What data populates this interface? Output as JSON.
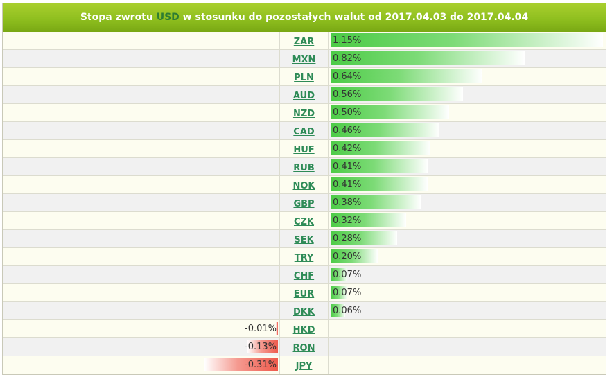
{
  "header": {
    "prefix": "Stopa zwrotu",
    "base_currency": "USD",
    "suffix": "w stosunku do pozostałych walut od 2017.04.03 do 2017.04.04"
  },
  "colors": {
    "header_green": "#8fbf1f",
    "positive_bar": "#4ccb46",
    "negative_bar": "#ee5a4c",
    "link": "#2e8b57"
  },
  "chart_data": {
    "type": "bar",
    "orientation": "horizontal",
    "base_currency": "USD",
    "period": [
      "2017.04.03",
      "2017.04.04"
    ],
    "unit": "%",
    "categories": [
      "ZAR",
      "MXN",
      "PLN",
      "AUD",
      "NZD",
      "CAD",
      "HUF",
      "RUB",
      "NOK",
      "GBP",
      "CZK",
      "SEK",
      "TRY",
      "CHF",
      "EUR",
      "DKK",
      "HKD",
      "RON",
      "JPY"
    ],
    "values": [
      1.15,
      0.82,
      0.64,
      0.56,
      0.5,
      0.46,
      0.42,
      0.41,
      0.41,
      0.38,
      0.32,
      0.28,
      0.2,
      0.07,
      0.07,
      0.06,
      -0.01,
      -0.13,
      -0.31
    ],
    "labels": [
      "1.15%",
      "0.82%",
      "0.64%",
      "0.56%",
      "0.50%",
      "0.46%",
      "0.42%",
      "0.41%",
      "0.41%",
      "0.38%",
      "0.32%",
      "0.28%",
      "0.20%",
      "0.07%",
      "0.07%",
      "0.06%",
      "-0.01%",
      "-0.13%",
      "-0.31%"
    ],
    "xlim": [
      -1.15,
      1.15
    ]
  }
}
